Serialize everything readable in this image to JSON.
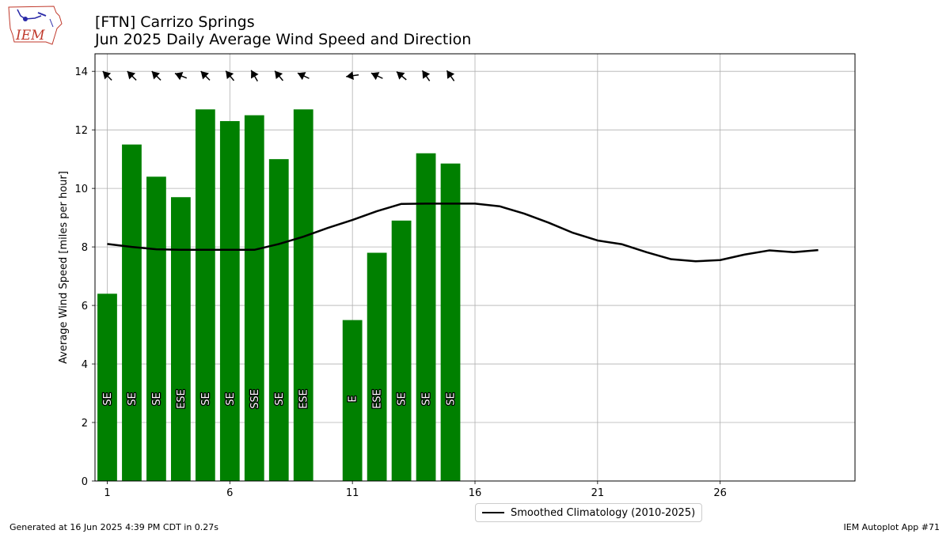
{
  "header": {
    "title_line1": "[FTN] Carrizo Springs",
    "title_line2": "Jun 2025 Daily Average Wind Speed and Direction",
    "logo_text": "IEM"
  },
  "footer": {
    "left": "Generated at 16 Jun 2025 4:39 PM CDT in 0.27s",
    "right": "IEM Autoplot App #71"
  },
  "colors": {
    "bar": "#008000",
    "line": "#000000",
    "grid": "#b0b0b0"
  },
  "chart_data": {
    "type": "bar",
    "ylabel": "Average Wind Speed [miles per hour]",
    "xlabel": "",
    "ylim": [
      0,
      14.6
    ],
    "xlim": [
      0.5,
      31.5
    ],
    "xticks": [
      1,
      6,
      11,
      16,
      21,
      26
    ],
    "yticks": [
      0,
      2,
      4,
      6,
      8,
      10,
      12,
      14
    ],
    "grid": true,
    "legend_position": "bottom-center",
    "bars": [
      {
        "day": 1,
        "speed": 6.4,
        "dir_label": "SE",
        "dir_deg": 135
      },
      {
        "day": 2,
        "speed": 11.5,
        "dir_label": "SE",
        "dir_deg": 135
      },
      {
        "day": 3,
        "speed": 10.4,
        "dir_label": "SE",
        "dir_deg": 135
      },
      {
        "day": 4,
        "speed": 9.7,
        "dir_label": "ESE",
        "dir_deg": 112
      },
      {
        "day": 5,
        "speed": 12.7,
        "dir_label": "SE",
        "dir_deg": 135
      },
      {
        "day": 6,
        "speed": 12.3,
        "dir_label": "SE",
        "dir_deg": 140
      },
      {
        "day": 7,
        "speed": 12.5,
        "dir_label": "SSE",
        "dir_deg": 150
      },
      {
        "day": 8,
        "speed": 11.0,
        "dir_label": "SE",
        "dir_deg": 140
      },
      {
        "day": 9,
        "speed": 12.7,
        "dir_label": "ESE",
        "dir_deg": 115
      },
      {
        "day": 11,
        "speed": 5.5,
        "dir_label": "E",
        "dir_deg": 82
      },
      {
        "day": 12,
        "speed": 7.8,
        "dir_label": "ESE",
        "dir_deg": 115
      },
      {
        "day": 13,
        "speed": 8.9,
        "dir_label": "SE",
        "dir_deg": 130
      },
      {
        "day": 14,
        "speed": 11.2,
        "dir_label": "SE",
        "dir_deg": 145
      },
      {
        "day": 15,
        "speed": 10.85,
        "dir_label": "SE",
        "dir_deg": 145
      }
    ],
    "series": [
      {
        "name": "Smoothed Climatology (2010-2025)",
        "x": [
          1,
          2,
          3,
          4,
          5,
          6,
          7,
          8,
          9,
          10,
          11,
          12,
          13,
          14,
          15,
          16,
          17,
          18,
          19,
          20,
          21,
          22,
          23,
          24,
          25,
          26,
          27,
          28,
          29,
          30
        ],
        "values": [
          8.1,
          8.0,
          7.92,
          7.9,
          7.9,
          7.9,
          7.9,
          8.1,
          8.35,
          8.65,
          8.92,
          9.22,
          9.47,
          9.48,
          9.48,
          9.48,
          9.39,
          9.14,
          8.83,
          8.48,
          8.22,
          8.09,
          7.82,
          7.58,
          7.51,
          7.55,
          7.74,
          7.88,
          7.82,
          7.89
        ]
      }
    ]
  }
}
